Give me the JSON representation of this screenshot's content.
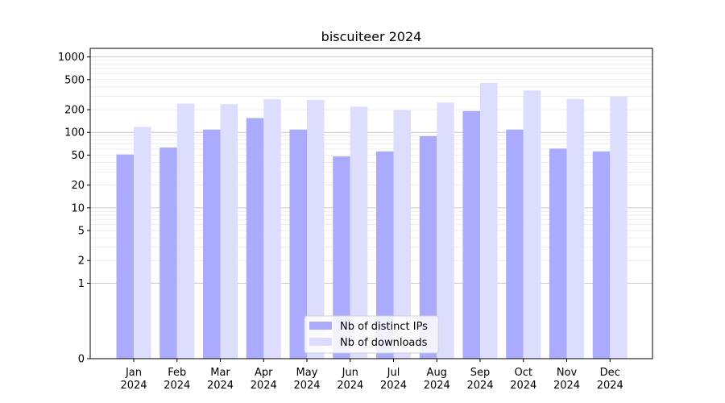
{
  "chart_data": {
    "type": "bar",
    "title": "biscuiteer 2024",
    "xlabel": "",
    "ylabel": "",
    "y_scale": "symlog",
    "ylim": [
      0,
      1300
    ],
    "y_ticks": [
      0,
      1,
      2,
      5,
      10,
      20,
      50,
      100,
      200,
      500,
      1000
    ],
    "grid": true,
    "legend_position": "bottom-center",
    "categories": [
      [
        "Jan",
        "2024"
      ],
      [
        "Feb",
        "2024"
      ],
      [
        "Mar",
        "2024"
      ],
      [
        "Apr",
        "2024"
      ],
      [
        "May",
        "2024"
      ],
      [
        "Jun",
        "2024"
      ],
      [
        "Jul",
        "2024"
      ],
      [
        "Aug",
        "2024"
      ],
      [
        "Sep",
        "2024"
      ],
      [
        "Oct",
        "2024"
      ],
      [
        "Nov",
        "2024"
      ],
      [
        "Dec",
        "2024"
      ]
    ],
    "series": [
      {
        "name": "Nb of distinct IPs",
        "color": "#aaaaff",
        "values": [
          51,
          63,
          109,
          155,
          109,
          48,
          56,
          89,
          192,
          109,
          61,
          56
        ]
      },
      {
        "name": "Nb of downloads",
        "color": "#ddddff",
        "values": [
          118,
          241,
          237,
          275,
          269,
          219,
          197,
          248,
          455,
          359,
          277,
          303
        ]
      }
    ]
  }
}
